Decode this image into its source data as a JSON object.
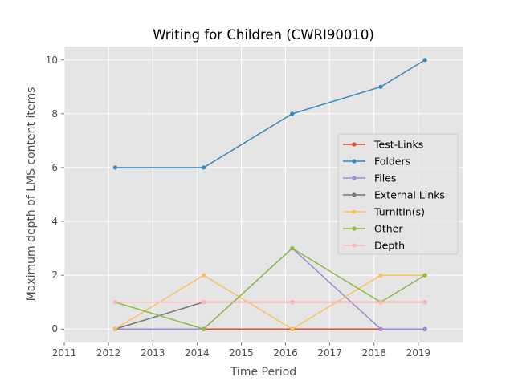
{
  "chart_data": {
    "type": "line",
    "title": "Writing for Children (CWRI90010)",
    "xlabel": "Time Period",
    "ylabel": "Maximum depth of LMS content items",
    "xlim": [
      2011,
      2020
    ],
    "ylim": [
      -0.5,
      10.5
    ],
    "x_ticks": [
      2011,
      2012,
      2013,
      2014,
      2015,
      2016,
      2017,
      2018,
      2019
    ],
    "y_ticks": [
      0,
      2,
      4,
      6,
      8,
      10
    ],
    "grid": true,
    "legend_position": "center-right",
    "x": [
      2012.15,
      2014.15,
      2016.15,
      2018.15,
      2019.15
    ],
    "series": [
      {
        "name": "Test-Links",
        "color": "#E24A33",
        "values": [
          0,
          0,
          0,
          0,
          0
        ]
      },
      {
        "name": "Folders",
        "color": "#348ABD",
        "values": [
          6,
          6,
          8,
          9,
          10
        ]
      },
      {
        "name": "Files",
        "color": "#988ED5",
        "values": [
          0,
          0,
          3,
          0,
          0
        ]
      },
      {
        "name": "External Links",
        "color": "#777777",
        "values": [
          0,
          1,
          1,
          1,
          1
        ]
      },
      {
        "name": "TurnItIn(s)",
        "color": "#FBC15E",
        "values": [
          0,
          2,
          0,
          2,
          2
        ]
      },
      {
        "name": "Other",
        "color": "#8EBA42",
        "values": [
          1,
          0,
          3,
          1,
          2
        ]
      },
      {
        "name": "Depth",
        "color": "#FFB5B8",
        "values": [
          1,
          1,
          1,
          1,
          1
        ]
      }
    ]
  }
}
